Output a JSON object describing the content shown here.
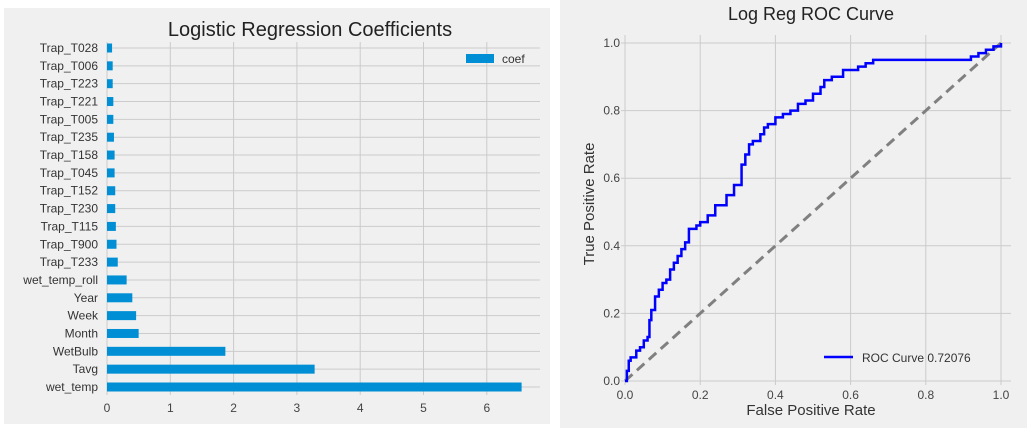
{
  "chart_data": [
    {
      "type": "bar",
      "orientation": "horizontal",
      "title": "Logistic Regression Coefficients",
      "xlabel": "",
      "ylabel": "",
      "categories": [
        "wet_temp",
        "Tavg",
        "WetBulb",
        "Month",
        "Week",
        "Year",
        "wet_temp_roll",
        "Trap_T233",
        "Trap_T900",
        "Trap_T115",
        "Trap_T230",
        "Trap_T152",
        "Trap_T045",
        "Trap_T158",
        "Trap_T235",
        "Trap_T005",
        "Trap_T221",
        "Trap_T223",
        "Trap_T006",
        "Trap_T028"
      ],
      "series": [
        {
          "name": "coef",
          "values": [
            6.55,
            3.28,
            1.87,
            0.5,
            0.46,
            0.4,
            0.31,
            0.17,
            0.15,
            0.14,
            0.13,
            0.13,
            0.12,
            0.12,
            0.11,
            0.1,
            0.1,
            0.09,
            0.09,
            0.08
          ]
        }
      ],
      "xlim": [
        0,
        6.85
      ],
      "xticks": [
        "0",
        "1",
        "2",
        "3",
        "4",
        "5",
        "6"
      ],
      "grid": true,
      "legend_position": "top-right",
      "bar_color": "#008fd5"
    },
    {
      "type": "line",
      "title": "Log Reg ROC Curve",
      "xlabel": "False Positive Rate",
      "ylabel": "True Positive Rate",
      "xlim": [
        0,
        1
      ],
      "ylim": [
        0,
        1
      ],
      "xticks": [
        "0.0",
        "0.2",
        "0.4",
        "0.6",
        "0.8",
        "1.0"
      ],
      "yticks": [
        "0.0",
        "0.2",
        "0.4",
        "0.6",
        "0.8",
        "1.0"
      ],
      "grid": true,
      "legend_position": "lower-right",
      "series": [
        {
          "name": "ROC Curve 0.72076",
          "color": "#0000ff",
          "x": [
            0.0,
            0.005,
            0.01,
            0.015,
            0.02,
            0.03,
            0.04,
            0.05,
            0.06,
            0.065,
            0.07,
            0.08,
            0.09,
            0.1,
            0.11,
            0.12,
            0.13,
            0.14,
            0.15,
            0.16,
            0.17,
            0.18,
            0.19,
            0.2,
            0.22,
            0.24,
            0.26,
            0.27,
            0.28,
            0.29,
            0.3,
            0.31,
            0.32,
            0.33,
            0.34,
            0.36,
            0.37,
            0.38,
            0.4,
            0.42,
            0.44,
            0.46,
            0.48,
            0.5,
            0.52,
            0.53,
            0.55,
            0.58,
            0.6,
            0.62,
            0.64,
            0.66,
            0.7,
            0.8,
            0.88,
            0.9,
            0.92,
            0.94,
            0.96,
            0.98,
            1.0
          ],
          "y": [
            0.0,
            0.03,
            0.06,
            0.07,
            0.07,
            0.09,
            0.1,
            0.12,
            0.13,
            0.18,
            0.21,
            0.25,
            0.27,
            0.29,
            0.3,
            0.33,
            0.35,
            0.37,
            0.39,
            0.41,
            0.45,
            0.45,
            0.46,
            0.47,
            0.49,
            0.52,
            0.52,
            0.55,
            0.55,
            0.58,
            0.58,
            0.64,
            0.67,
            0.7,
            0.71,
            0.73,
            0.75,
            0.76,
            0.78,
            0.79,
            0.8,
            0.82,
            0.83,
            0.85,
            0.87,
            0.89,
            0.9,
            0.92,
            0.92,
            0.93,
            0.94,
            0.95,
            0.95,
            0.95,
            0.95,
            0.95,
            0.96,
            0.97,
            0.98,
            0.99,
            1.0
          ]
        },
        {
          "name": "",
          "color": "#808080",
          "dashed": true,
          "x": [
            0,
            1
          ],
          "y": [
            0,
            1
          ]
        }
      ]
    }
  ]
}
